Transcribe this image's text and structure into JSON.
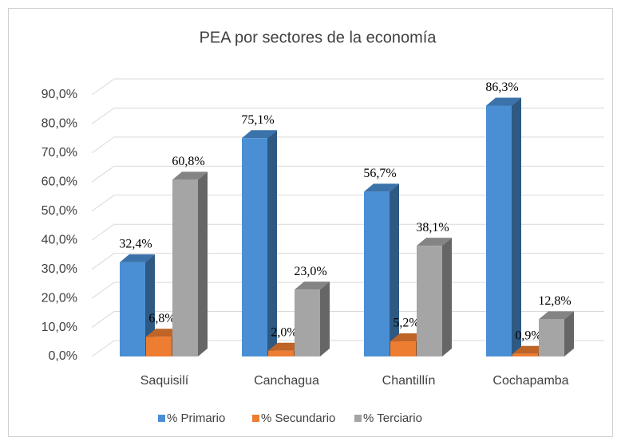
{
  "chart_data": {
    "type": "bar3d",
    "title": "PEA por sectores de la economía",
    "categories": [
      "Saquisilí",
      "Canchagua",
      "Chantillín",
      "Cochapamba"
    ],
    "series": [
      {
        "name": "% Primario",
        "color": "#4a8fd4",
        "values": [
          32.4,
          75.1,
          56.7,
          86.3
        ],
        "value_labels": [
          "32,4%",
          "75,1%",
          "56,7%",
          "86,3%"
        ]
      },
      {
        "name": "% Secundario",
        "color": "#ed7d31",
        "values": [
          6.8,
          2.0,
          5.2,
          0.9
        ],
        "value_labels": [
          "6,8%",
          "2,0%",
          "5,2%",
          "0,9%"
        ]
      },
      {
        "name": "% Terciario",
        "color": "#a5a5a5",
        "values": [
          60.8,
          23.0,
          38.1,
          12.8
        ],
        "value_labels": [
          "60,8%",
          "23,0%",
          "38,1%",
          "12,8%"
        ]
      }
    ],
    "ylim": [
      0,
      90
    ],
    "yticks": [
      {
        "value": 0,
        "label": "0,0%"
      },
      {
        "value": 10,
        "label": "10,0%"
      },
      {
        "value": 20,
        "label": "20,0%"
      },
      {
        "value": 30,
        "label": "30,0%"
      },
      {
        "value": 40,
        "label": "40,0%"
      },
      {
        "value": 50,
        "label": "50,0%"
      },
      {
        "value": 60,
        "label": "60,0%"
      },
      {
        "value": 70,
        "label": "70,0%"
      },
      {
        "value": 80,
        "label": "80,0%"
      },
      {
        "value": 90,
        "label": "90,0%"
      }
    ],
    "grid": true,
    "legend": "bottom"
  }
}
